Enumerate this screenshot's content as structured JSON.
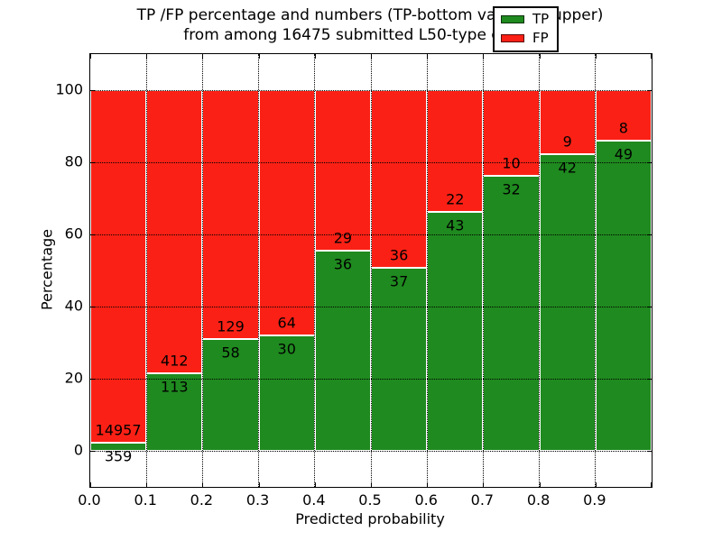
{
  "title": {
    "line1": "TP /FP percentage and numbers (TP-bottom value, FP-upper)",
    "line2": "from among 16475 submitted L50-type contacts"
  },
  "axes": {
    "x_label": "Predicted probability",
    "y_label": "Percentage",
    "x_tick_labels": [
      "0.0",
      "0.1",
      "0.2",
      "0.3",
      "0.4",
      "0.5",
      "0.6",
      "0.7",
      "0.8",
      "0.9"
    ],
    "y_tick_labels": [
      "0",
      "20",
      "40",
      "60",
      "80",
      "100"
    ],
    "y_tick_values": [
      0,
      20,
      40,
      60,
      80,
      100
    ]
  },
  "chart_data": {
    "type": "bar",
    "stacked": true,
    "normalized_to_percent": true,
    "title": "TP /FP percentage and numbers (TP-bottom value, FP-upper) from among 16475 submitted L50-type contacts",
    "xlabel": "Predicted probability",
    "ylabel": "Percentage",
    "xlim": [
      0.0,
      1.0
    ],
    "ylim": [
      -10,
      110
    ],
    "bin_width": 0.1,
    "grid": "dotted",
    "legend_position": "upper right",
    "total_submitted": 16475,
    "categories": [
      "0.0-0.1",
      "0.1-0.2",
      "0.2-0.3",
      "0.3-0.4",
      "0.4-0.5",
      "0.5-0.6",
      "0.6-0.7",
      "0.7-0.8",
      "0.8-0.9",
      "0.9-1.0"
    ],
    "series": [
      {
        "name": "TP",
        "color": "#1f8a1f",
        "counts": [
          359,
          113,
          58,
          30,
          36,
          37,
          43,
          32,
          42,
          49
        ]
      },
      {
        "name": "FP",
        "color": "#fb2015",
        "counts": [
          14957,
          412,
          129,
          64,
          29,
          36,
          22,
          10,
          9,
          8
        ]
      }
    ]
  },
  "colors": {
    "tp_green": "#1f8a1f",
    "fp_red": "#fb2015",
    "text": "#000000",
    "background": "#ffffff"
  }
}
